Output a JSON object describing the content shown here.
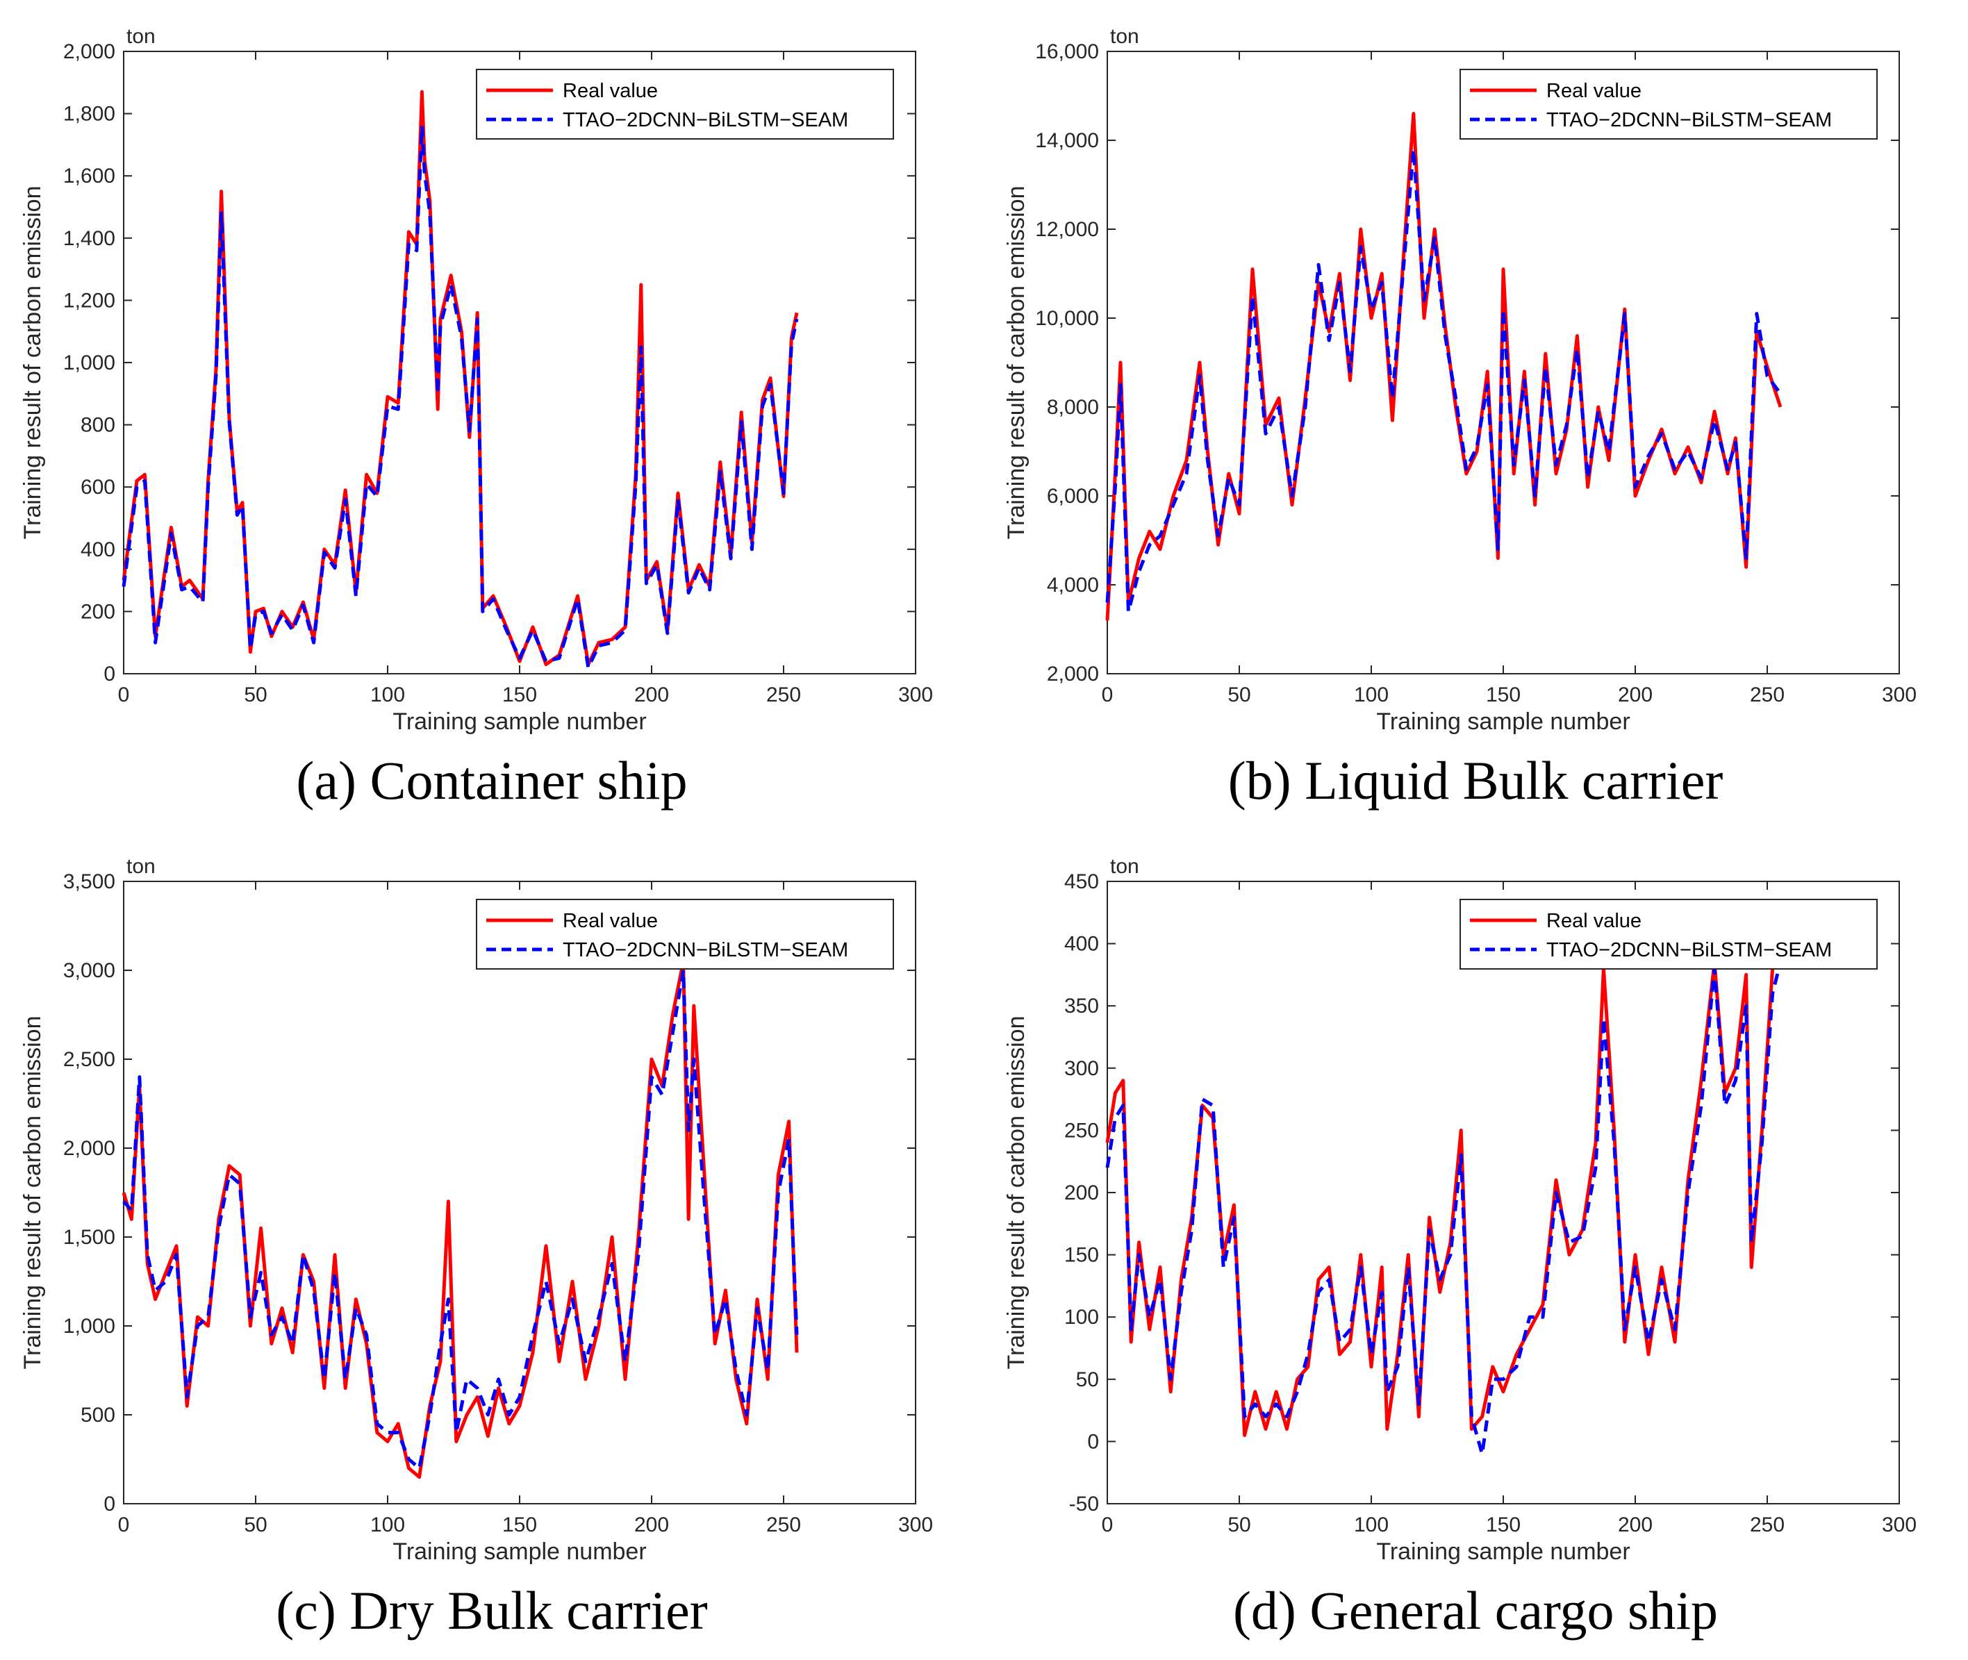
{
  "chart_data": [
    {
      "type": "line",
      "caption": "(a) Container ship",
      "unit": "ton",
      "xlabel": "Training sample number",
      "ylabel": "Training result of carbon emission",
      "xlim": [
        0,
        300
      ],
      "ylim": [
        0,
        2000
      ],
      "xticks": [
        0,
        50,
        100,
        150,
        200,
        250,
        300
      ],
      "yticks": [
        0,
        200,
        400,
        600,
        800,
        1000,
        1200,
        1400,
        1600,
        1800,
        2000
      ],
      "xtick_labels": [
        "0",
        "50",
        "100",
        "150",
        "200",
        "250",
        "300"
      ],
      "ytick_labels": [
        "0",
        "200",
        "400",
        "600",
        "800",
        "1,000",
        "1,200",
        "1,400",
        "1,600",
        "1,800",
        "2,000"
      ],
      "legend": [
        "Real value",
        "TTAO−2DCNN−BiLSTM−SEAM"
      ],
      "colors": {
        "real": "#ff0000",
        "pred": "#0000ff"
      },
      "x": [
        0,
        5,
        8,
        12,
        18,
        22,
        25,
        30,
        32,
        35,
        37,
        40,
        43,
        45,
        48,
        50,
        53,
        56,
        60,
        64,
        68,
        72,
        76,
        80,
        84,
        88,
        92,
        96,
        100,
        104,
        108,
        111,
        113,
        114,
        116,
        119,
        120,
        124,
        128,
        131,
        134,
        136,
        140,
        145,
        150,
        155,
        160,
        165,
        172,
        176,
        180,
        185,
        190,
        194,
        196,
        198,
        202,
        206,
        210,
        214,
        218,
        222,
        226,
        230,
        234,
        238,
        242,
        245,
        250,
        253,
        255
      ],
      "series": [
        {
          "name": "Real value",
          "values": [
            300,
            620,
            640,
            120,
            470,
            280,
            300,
            240,
            620,
            980,
            1550,
            820,
            520,
            550,
            70,
            200,
            210,
            120,
            200,
            150,
            230,
            110,
            400,
            350,
            590,
            260,
            640,
            580,
            890,
            870,
            1420,
            1380,
            1870,
            1650,
            1520,
            850,
            1140,
            1280,
            1100,
            760,
            1160,
            210,
            250,
            150,
            40,
            150,
            30,
            60,
            250,
            30,
            100,
            110,
            150,
            640,
            1250,
            300,
            360,
            140,
            580,
            270,
            350,
            280,
            680,
            380,
            840,
            420,
            880,
            950,
            570,
            1080,
            1160
          ]
        },
        {
          "name": "TTAO−2DCNN−BiLSTM−SEAM",
          "values": [
            280,
            600,
            620,
            100,
            450,
            270,
            280,
            230,
            600,
            960,
            1480,
            810,
            510,
            540,
            80,
            190,
            200,
            130,
            190,
            140,
            220,
            100,
            390,
            340,
            560,
            250,
            610,
            570,
            860,
            850,
            1380,
            1360,
            1760,
            1610,
            1480,
            900,
            1120,
            1250,
            1080,
            780,
            1140,
            200,
            240,
            140,
            50,
            140,
            40,
            50,
            240,
            20,
            90,
            100,
            140,
            610,
            1050,
            290,
            350,
            130,
            560,
            260,
            340,
            270,
            650,
            370,
            810,
            400,
            860,
            930,
            580,
            1060,
            1140
          ]
        }
      ]
    },
    {
      "type": "line",
      "caption": "(b) Liquid Bulk carrier",
      "unit": "ton",
      "xlabel": "Training sample number",
      "ylabel": "Training result of carbon emission",
      "xlim": [
        0,
        300
      ],
      "ylim": [
        2000,
        16000
      ],
      "xticks": [
        0,
        50,
        100,
        150,
        200,
        250,
        300
      ],
      "yticks": [
        2000,
        4000,
        6000,
        8000,
        10000,
        12000,
        14000,
        16000
      ],
      "xtick_labels": [
        "0",
        "50",
        "100",
        "150",
        "200",
        "250",
        "300"
      ],
      "ytick_labels": [
        "2,000",
        "4,000",
        "6,000",
        "8,000",
        "10,000",
        "12,000",
        "14,000",
        "16,000"
      ],
      "legend": [
        "Real value",
        "TTAO−2DCNN−BiLSTM−SEAM"
      ],
      "colors": {
        "real": "#ff0000",
        "pred": "#0000ff"
      },
      "x": [
        0,
        3,
        5,
        8,
        12,
        16,
        20,
        25,
        30,
        35,
        38,
        42,
        46,
        50,
        55,
        60,
        65,
        70,
        75,
        80,
        84,
        88,
        92,
        96,
        100,
        104,
        108,
        112,
        116,
        120,
        124,
        128,
        132,
        136,
        140,
        144,
        148,
        150,
        154,
        158,
        162,
        166,
        170,
        174,
        178,
        182,
        186,
        190,
        196,
        200,
        205,
        210,
        215,
        220,
        225,
        230,
        235,
        238,
        242,
        246,
        250,
        255
      ],
      "series": [
        {
          "name": "Real value",
          "values": [
            3200,
            6500,
            9000,
            3600,
            4600,
            5200,
            4800,
            6000,
            6800,
            9000,
            7000,
            4900,
            6500,
            5600,
            11100,
            7600,
            8200,
            5800,
            8200,
            10800,
            9700,
            11000,
            8600,
            12000,
            10000,
            11000,
            7700,
            11200,
            14600,
            10000,
            12000,
            9800,
            8000,
            6500,
            7000,
            8800,
            4600,
            11100,
            6500,
            8800,
            5800,
            9200,
            6500,
            7500,
            9600,
            6200,
            8000,
            6800,
            10200,
            6000,
            6800,
            7500,
            6500,
            7100,
            6300,
            7900,
            6500,
            7300,
            4400,
            9700,
            8900,
            8000
          ]
        },
        {
          "name": "TTAO−2DCNN−BiLSTM−SEAM",
          "values": [
            3600,
            6200,
            8500,
            3400,
            4300,
            4900,
            5100,
            5800,
            6500,
            8700,
            6800,
            5100,
            6400,
            5800,
            10500,
            7400,
            8000,
            6000,
            8000,
            11200,
            9500,
            10800,
            8800,
            11600,
            10200,
            10800,
            8200,
            11000,
            13800,
            10400,
            11800,
            9600,
            8200,
            6600,
            7100,
            8500,
            4800,
            10200,
            6700,
            8600,
            6000,
            8900,
            6700,
            7600,
            9300,
            6400,
            7900,
            7000,
            10100,
            6200,
            6900,
            7400,
            6600,
            7000,
            6400,
            7700,
            6600,
            7200,
            4600,
            10100,
            8700,
            8300
          ]
        }
      ]
    },
    {
      "type": "line",
      "caption": "(c) Dry Bulk carrier",
      "unit": "ton",
      "xlabel": "Training sample number",
      "ylabel": "Training result of carbon emission",
      "xlim": [
        0,
        300
      ],
      "ylim": [
        0,
        3500
      ],
      "xticks": [
        0,
        50,
        100,
        150,
        200,
        250,
        300
      ],
      "yticks": [
        0,
        500,
        1000,
        1500,
        2000,
        2500,
        3000,
        3500
      ],
      "xtick_labels": [
        "0",
        "50",
        "100",
        "150",
        "200",
        "250",
        "300"
      ],
      "ytick_labels": [
        "0",
        "500",
        "1,000",
        "1,500",
        "2,000",
        "2,500",
        "3,000",
        "3,500"
      ],
      "legend": [
        "Real value",
        "TTAO−2DCNN−BiLSTM−SEAM"
      ],
      "colors": {
        "real": "#ff0000",
        "pred": "#0000ff"
      },
      "x": [
        0,
        3,
        6,
        9,
        12,
        16,
        20,
        24,
        28,
        32,
        36,
        40,
        44,
        48,
        52,
        56,
        60,
        64,
        68,
        72,
        76,
        80,
        84,
        88,
        92,
        96,
        100,
        104,
        108,
        112,
        116,
        120,
        123,
        126,
        130,
        134,
        138,
        142,
        146,
        150,
        155,
        160,
        165,
        170,
        175,
        180,
        185,
        190,
        195,
        200,
        204,
        208,
        212,
        214,
        216,
        220,
        224,
        228,
        232,
        236,
        240,
        244,
        248,
        252,
        255
      ],
      "series": [
        {
          "name": "Real value",
          "values": [
            1750,
            1600,
            2350,
            1350,
            1150,
            1300,
            1450,
            550,
            1050,
            1000,
            1600,
            1900,
            1850,
            1000,
            1550,
            900,
            1100,
            850,
            1400,
            1250,
            650,
            1400,
            650,
            1150,
            900,
            400,
            350,
            450,
            200,
            150,
            550,
            800,
            1700,
            350,
            500,
            600,
            380,
            650,
            450,
            550,
            850,
            1450,
            800,
            1250,
            700,
            1000,
            1500,
            700,
            1500,
            2500,
            2350,
            2750,
            3050,
            1600,
            2800,
            1850,
            900,
            1200,
            700,
            450,
            1150,
            700,
            1850,
            2150,
            850
          ]
        },
        {
          "name": "TTAO−2DCNN−BiLSTM−SEAM",
          "values": [
            1700,
            1650,
            2400,
            1400,
            1200,
            1250,
            1400,
            600,
            1000,
            1050,
            1550,
            1850,
            1800,
            1050,
            1300,
            950,
            1050,
            900,
            1400,
            1200,
            700,
            1300,
            700,
            1100,
            950,
            450,
            400,
            400,
            250,
            200,
            500,
            900,
            1150,
            400,
            700,
            650,
            500,
            700,
            500,
            600,
            950,
            1250,
            900,
            1150,
            800,
            1050,
            1350,
            800,
            1400,
            2400,
            2300,
            2650,
            3000,
            2100,
            2500,
            1700,
            950,
            1150,
            750,
            500,
            1100,
            750,
            1750,
            2050,
            950
          ]
        }
      ]
    },
    {
      "type": "line",
      "caption": "(d) General cargo ship",
      "unit": "ton",
      "xlabel": "Training sample number",
      "ylabel": "Training result of carbon emission",
      "xlim": [
        0,
        300
      ],
      "ylim": [
        -50,
        450
      ],
      "xticks": [
        0,
        50,
        100,
        150,
        200,
        250,
        300
      ],
      "yticks": [
        -50,
        0,
        50,
        100,
        150,
        200,
        250,
        300,
        350,
        400,
        450
      ],
      "xtick_labels": [
        "0",
        "50",
        "100",
        "150",
        "200",
        "250",
        "300"
      ],
      "ytick_labels": [
        "-50",
        "0",
        "50",
        "100",
        "150",
        "200",
        "250",
        "300",
        "350",
        "400",
        "450"
      ],
      "legend": [
        "Real value",
        "TTAO−2DCNN−BiLSTM−SEAM"
      ],
      "colors": {
        "real": "#ff0000",
        "pred": "#0000ff"
      },
      "x": [
        0,
        3,
        6,
        9,
        12,
        16,
        20,
        24,
        28,
        32,
        36,
        40,
        44,
        48,
        52,
        56,
        60,
        64,
        68,
        72,
        76,
        80,
        84,
        88,
        92,
        96,
        100,
        104,
        106,
        110,
        114,
        118,
        122,
        126,
        130,
        134,
        138,
        142,
        146,
        150,
        155,
        160,
        165,
        170,
        175,
        180,
        185,
        188,
        192,
        196,
        200,
        205,
        210,
        215,
        220,
        225,
        230,
        234,
        238,
        242,
        244,
        248,
        252,
        255
      ],
      "series": [
        {
          "name": "Real value",
          "values": [
            240,
            280,
            290,
            80,
            160,
            90,
            140,
            40,
            130,
            180,
            270,
            260,
            150,
            190,
            5,
            40,
            10,
            40,
            10,
            50,
            60,
            130,
            140,
            70,
            80,
            150,
            60,
            140,
            10,
            70,
            150,
            20,
            180,
            120,
            160,
            250,
            10,
            20,
            60,
            40,
            70,
            90,
            110,
            210,
            150,
            170,
            240,
            380,
            250,
            80,
            150,
            70,
            140,
            80,
            210,
            290,
            385,
            280,
            300,
            375,
            140,
            250,
            380,
            390
          ]
        },
        {
          "name": "TTAO−2DCNN−BiLSTM−SEAM",
          "values": [
            220,
            260,
            270,
            90,
            150,
            100,
            130,
            50,
            120,
            170,
            275,
            270,
            140,
            180,
            20,
            30,
            20,
            30,
            20,
            40,
            70,
            120,
            130,
            80,
            90,
            140,
            70,
            120,
            40,
            60,
            140,
            30,
            170,
            130,
            150,
            230,
            20,
            -10,
            50,
            50,
            60,
            100,
            100,
            200,
            160,
            165,
            220,
            340,
            240,
            90,
            140,
            80,
            130,
            90,
            200,
            270,
            380,
            270,
            290,
            350,
            160,
            240,
            360,
            385
          ]
        }
      ]
    }
  ]
}
